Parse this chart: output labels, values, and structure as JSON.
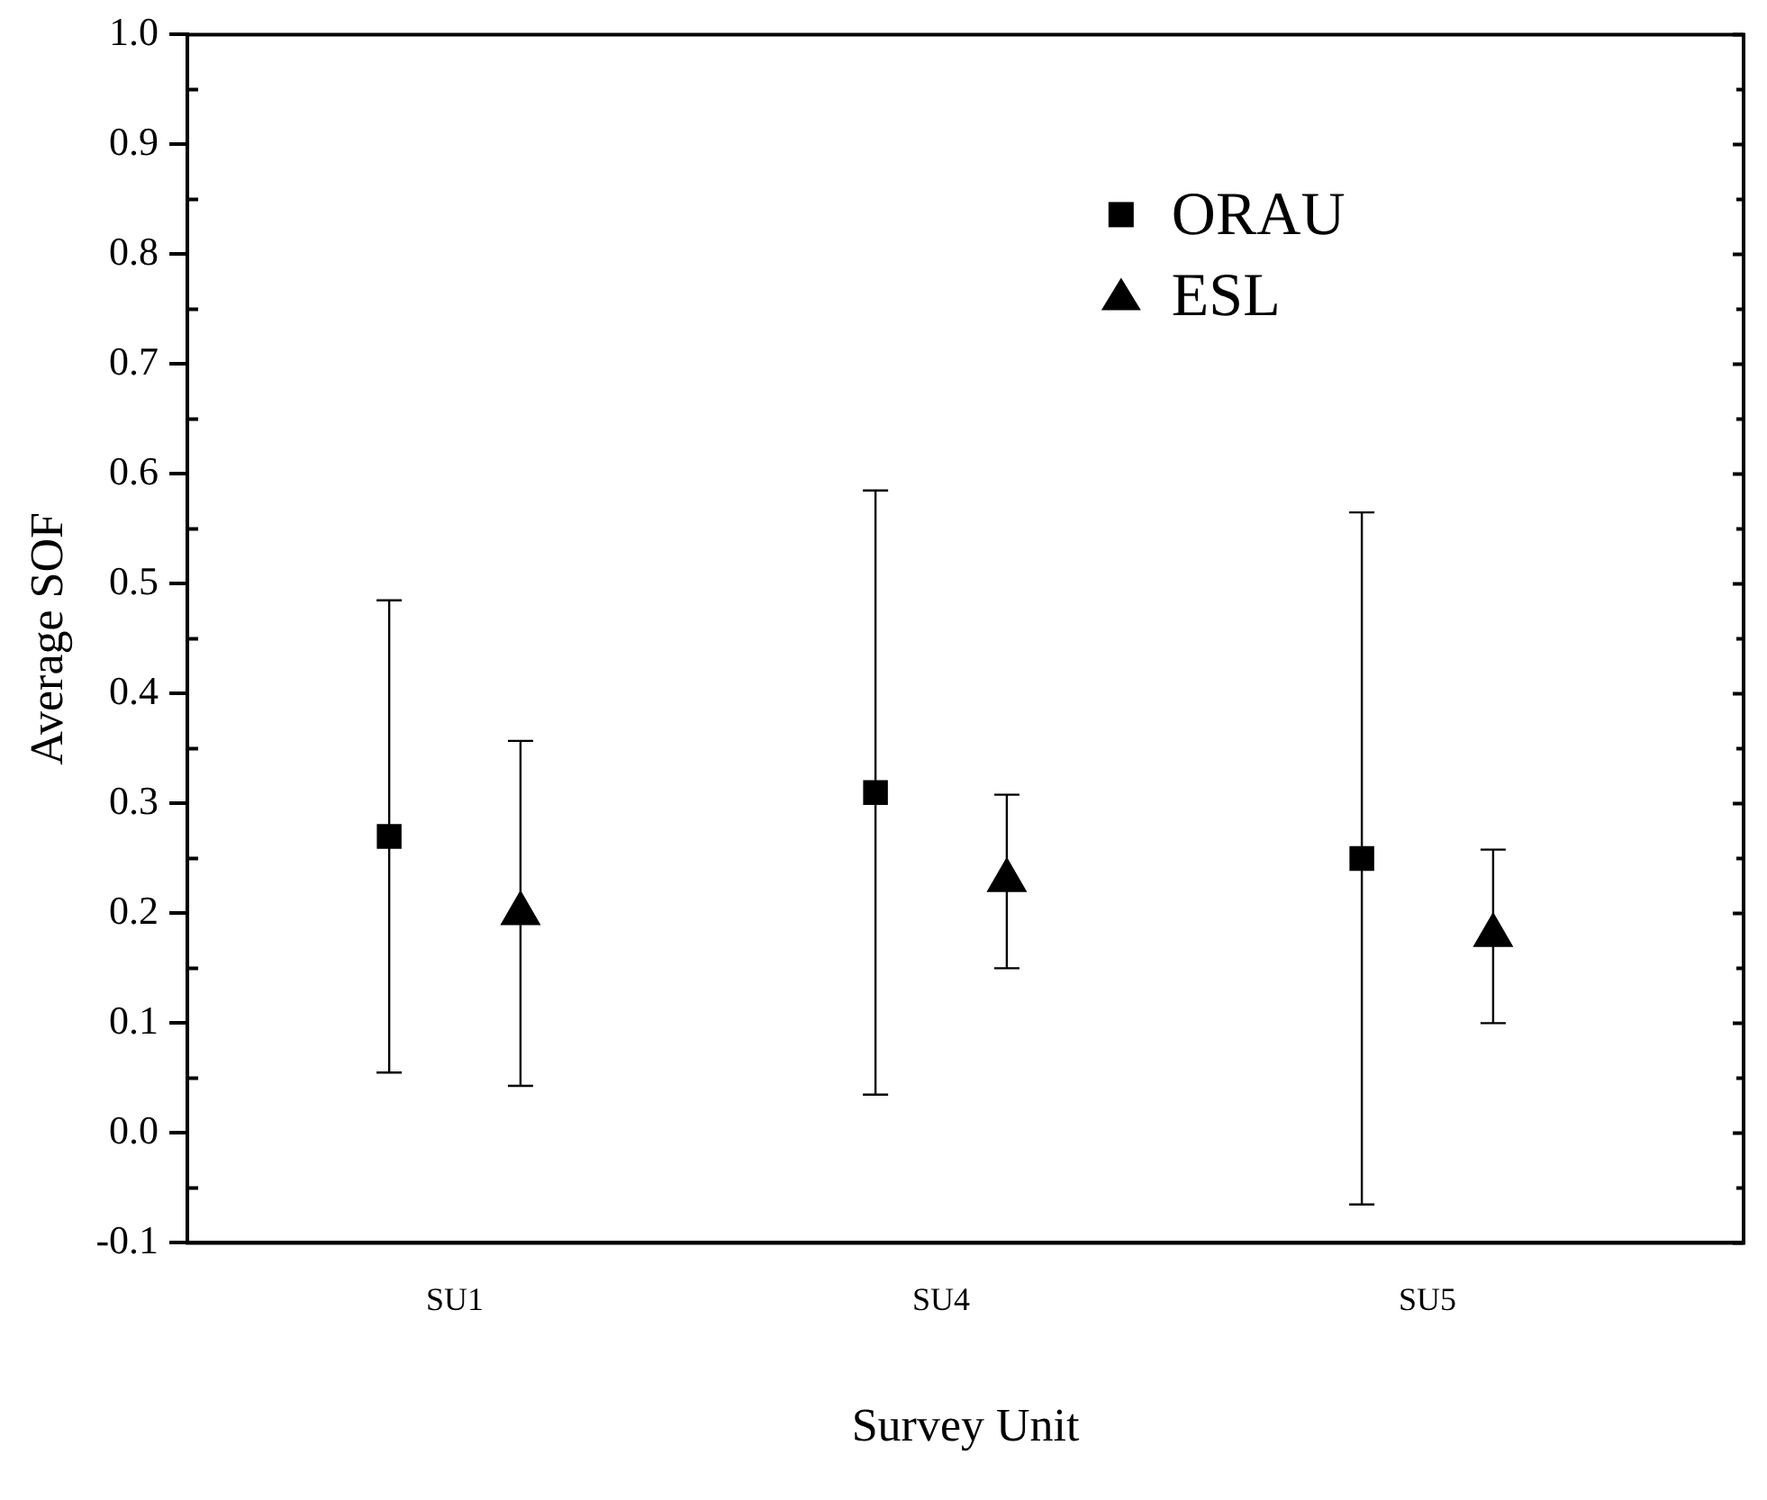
{
  "chart_data": {
    "type": "scatter",
    "xlabel": "Survey Unit",
    "ylabel": "Average SOF",
    "categories": [
      "SU1",
      "SU4",
      "SU5"
    ],
    "series": [
      {
        "name": "ORAU",
        "color": "#000000",
        "marker": "square",
        "x": [
          "SU1",
          "SU4",
          "SU5"
        ],
        "values": [
          0.27,
          0.31,
          0.25
        ],
        "errors": [
          [
            0.055,
            0.485
          ],
          [
            0.035,
            0.585
          ],
          [
            -0.065,
            0.565
          ]
        ]
      },
      {
        "name": "ESL",
        "color": "#000000",
        "marker": "triangle",
        "x": [
          "SU1",
          "SU4",
          "SU5"
        ],
        "values": [
          0.2,
          0.23,
          0.18
        ],
        "errors": [
          [
            0.043,
            0.357
          ],
          [
            0.15,
            0.308
          ],
          [
            0.1,
            0.258
          ]
        ]
      }
    ],
    "ylim": [
      -0.1,
      1.0
    ],
    "yticks": [
      -0.1,
      {
        "value": 0,
        "label": "0.0"
      },
      0.1,
      0.2,
      0.3,
      0.4,
      0.5,
      0.6,
      0.7,
      0.8,
      0.9,
      {
        "value": 1,
        "label": "1.0"
      }
    ],
    "grid": false,
    "legend": "top right"
  }
}
